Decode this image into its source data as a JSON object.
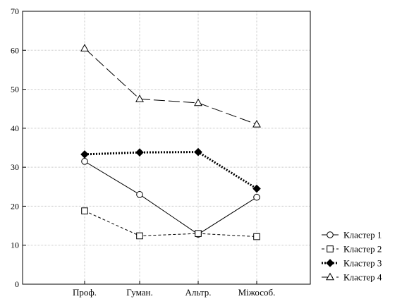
{
  "chart_data": {
    "type": "line",
    "categories": [
      "Проф.",
      "Гуман.",
      "Альтр.",
      "Міжособ."
    ],
    "ylim": [
      0,
      70
    ],
    "yticks": [
      0,
      10,
      20,
      30,
      40,
      50,
      60,
      70
    ],
    "grid": true,
    "legend_position": "right-bottom",
    "series": [
      {
        "name": "Кластер  1",
        "values": [
          31.5,
          23.0,
          12.8,
          22.3
        ],
        "marker": "circle-open",
        "dash": "solid",
        "color": "#000000"
      },
      {
        "name": "Кластер  2",
        "values": [
          18.8,
          12.4,
          13.0,
          12.2
        ],
        "marker": "square-open",
        "dash": "short-dash",
        "color": "#000000"
      },
      {
        "name": "Кластер  3",
        "values": [
          33.3,
          33.8,
          33.9,
          24.5
        ],
        "marker": "diamond-filled",
        "dash": "dotted",
        "color": "#000000"
      },
      {
        "name": "Кластер  4",
        "values": [
          60.5,
          47.5,
          46.5,
          41.0
        ],
        "marker": "triangle-open",
        "dash": "long-dash",
        "color": "#000000"
      }
    ]
  }
}
